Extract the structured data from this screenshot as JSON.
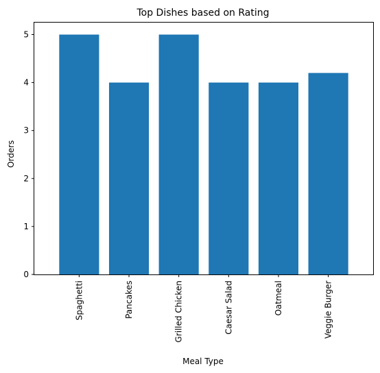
{
  "chart_data": {
    "type": "bar",
    "title": "Top Dishes based on Rating",
    "xlabel": "Meal Type",
    "ylabel": "Orders",
    "categories": [
      "Spaghetti",
      "Pancakes",
      "Grilled Chicken",
      "Caesar Salad",
      "Oatmeal",
      "Veggie Burger"
    ],
    "values": [
      5,
      4,
      5,
      4,
      4,
      4.2
    ],
    "ylim": [
      0,
      5.25
    ],
    "yticks": [
      0,
      1,
      2,
      3,
      4,
      5
    ],
    "bar_color": "#1f77b4",
    "grid": false,
    "legend": false
  }
}
